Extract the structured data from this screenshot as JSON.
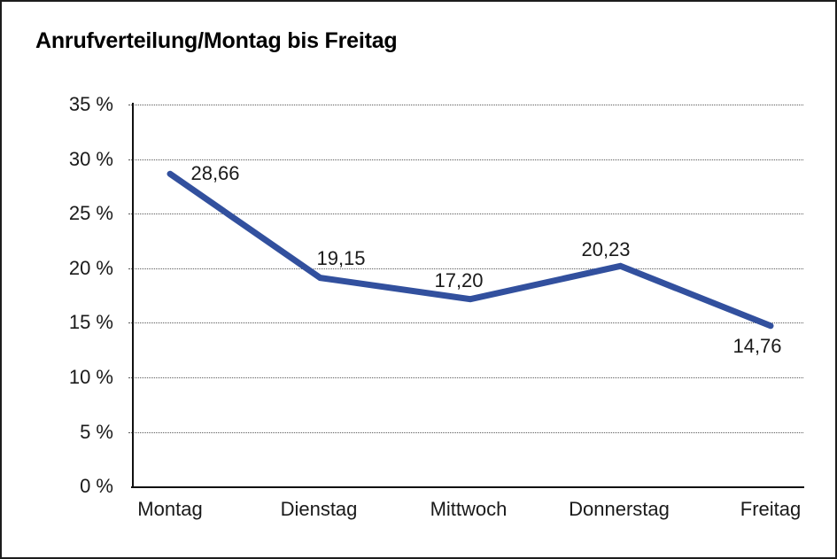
{
  "window": {
    "background_color": "#ffffff",
    "border_color": "#1c1c1c"
  },
  "chart_data": {
    "type": "line",
    "title": "Anrufverteilung/Montag bis Freitag",
    "categories": [
      "Montag",
      "Dienstag",
      "Mittwoch",
      "Donnerstag",
      "Freitag"
    ],
    "values": [
      28.66,
      19.15,
      17.2,
      20.23,
      14.76
    ],
    "value_labels": [
      "28,66",
      "19,15",
      "17,20",
      "20,23",
      "14,76"
    ],
    "yticks": [
      35,
      30,
      25,
      20,
      15,
      10,
      5,
      0
    ],
    "ytick_labels": [
      "35 %",
      "30 %",
      "25 %",
      "20 %",
      "15 %",
      "10 %",
      "5 %",
      "0 %"
    ],
    "ylim": [
      0,
      35
    ],
    "xlabel": "",
    "ylabel": "",
    "grid": "horizontal-dotted",
    "legend_position": "none",
    "line_color": "#32509E",
    "axis_color": "#111111",
    "text_color": "#1a1a1a"
  }
}
